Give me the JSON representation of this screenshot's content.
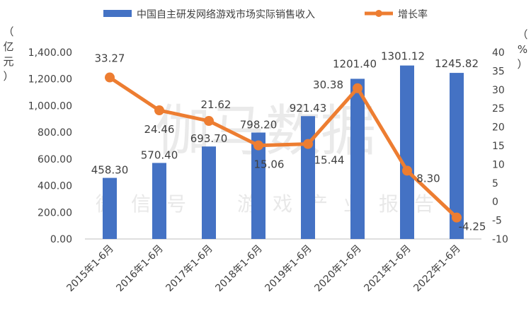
{
  "chart_data": {
    "type": "bar+line",
    "categories": [
      "2015年1-6月",
      "2016年1-6月",
      "2017年1-6月",
      "2018年1-6月",
      "2019年1-6月",
      "2020年1-6月",
      "2021年1-6月",
      "2022年1-6月"
    ],
    "series": [
      {
        "name": "中国自主研发网络游戏市场实际销售收入",
        "type": "bar",
        "axis": "left",
        "color": "#4472C4",
        "values": [
          458.3,
          570.4,
          693.7,
          798.2,
          921.43,
          1201.4,
          1301.12,
          1245.82
        ],
        "labels": [
          "458.30",
          "570.40",
          "693.70",
          "798.20",
          "921.43",
          "1201.40",
          "1301.12",
          "1245.82"
        ]
      },
      {
        "name": "增长率",
        "type": "line",
        "axis": "right",
        "color": "#ED7D31",
        "values": [
          33.27,
          24.46,
          21.62,
          15.06,
          15.44,
          30.38,
          8.3,
          -4.25
        ],
        "labels": [
          "33.27",
          "24.46",
          "21.62",
          "15.06",
          "15.44",
          "30.38",
          "8.30",
          "-4.25"
        ]
      }
    ],
    "y_left": {
      "label": "（亿元）",
      "unit_chars": [
        "（",
        "亿",
        "元",
        "）"
      ],
      "ylim": [
        0,
        1400
      ],
      "ticks": [
        "0.00",
        "200.00",
        "400.00",
        "600.00",
        "800.00",
        "1,000.00",
        "1,200.00",
        "1,400.00"
      ]
    },
    "y_right": {
      "label": "（%）",
      "unit_chars": [
        "（",
        "%",
        "）"
      ],
      "ylim": [
        -10,
        40
      ],
      "ticks": [
        "-10",
        "-5",
        "0",
        "5",
        "10",
        "15",
        "20",
        "25",
        "30",
        "35",
        "40"
      ]
    }
  },
  "watermark": {
    "main": "伽马数据",
    "sub": "微信号：游戏产业报告"
  }
}
